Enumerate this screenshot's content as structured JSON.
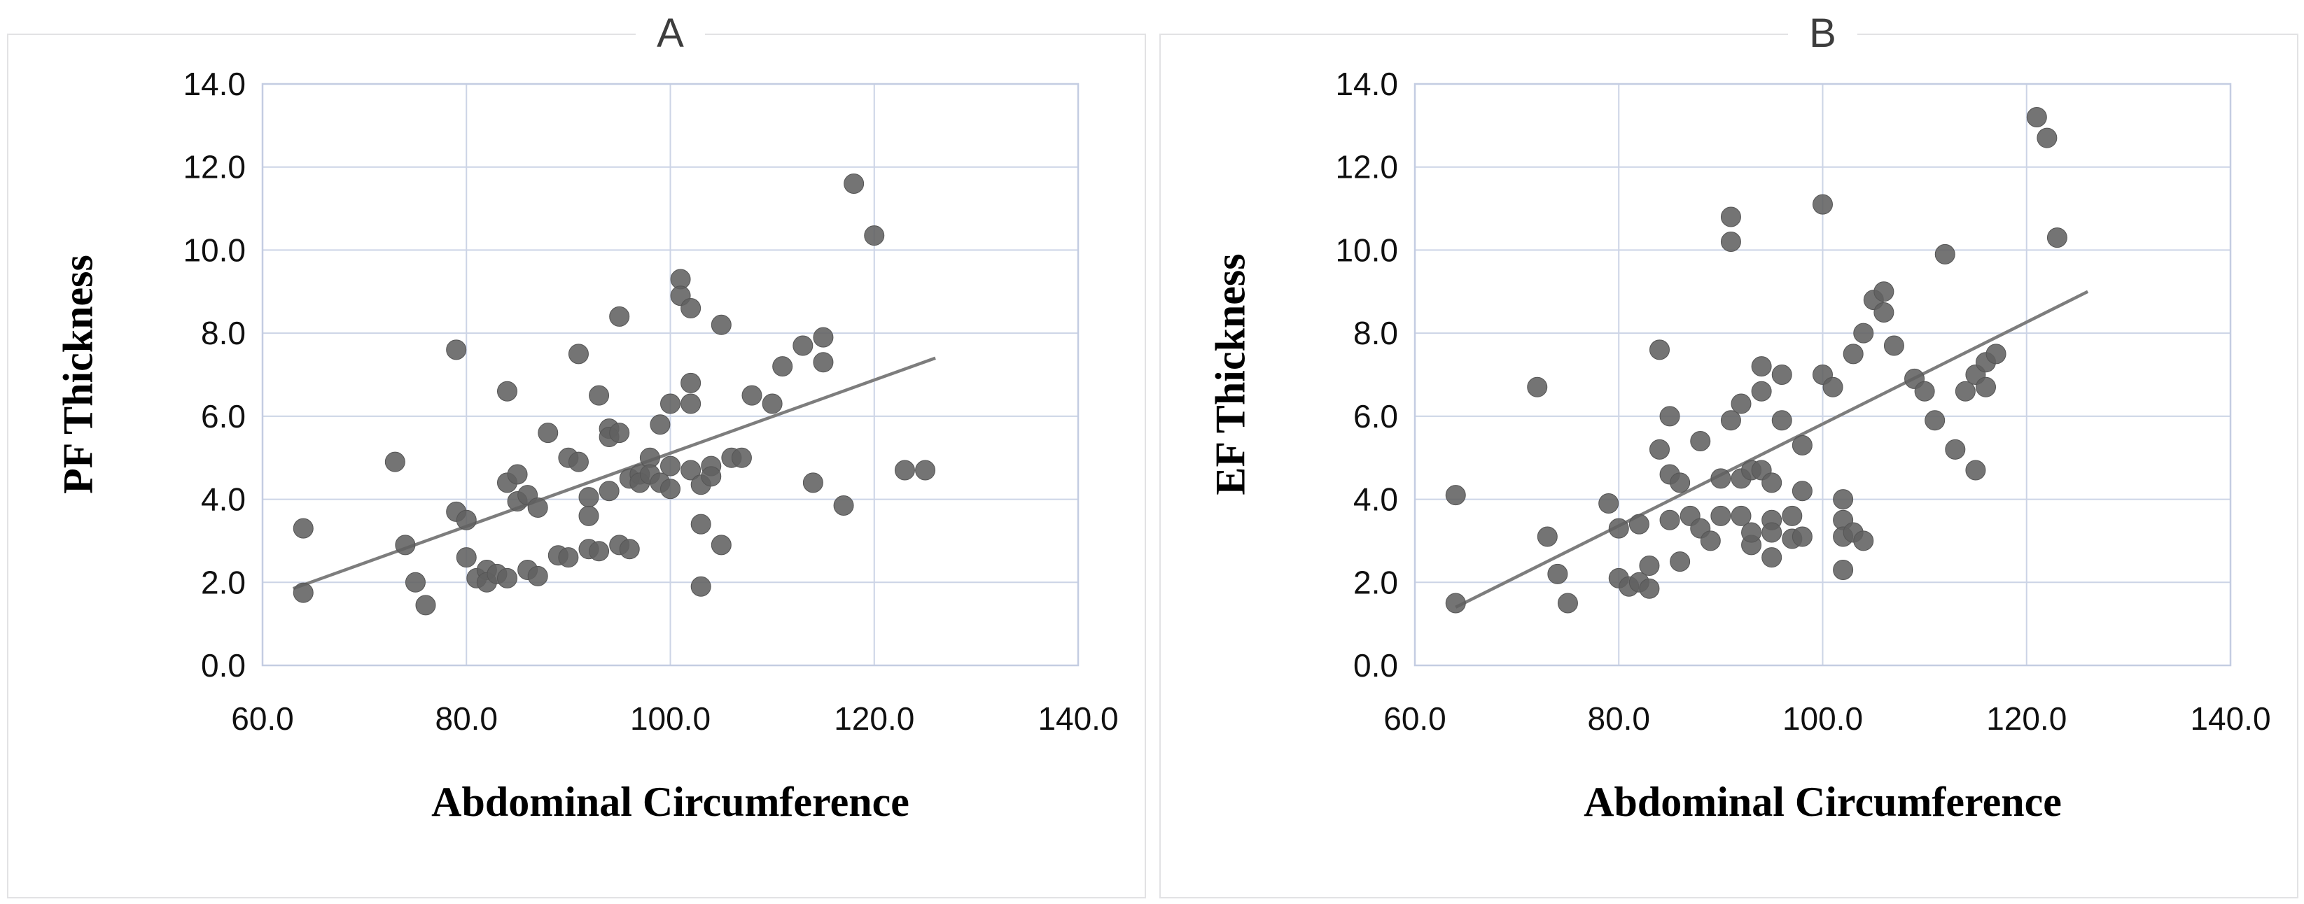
{
  "chart_data": [
    {
      "type": "scatter",
      "panel_label": "A",
      "xlabel": "Abdominal Circumference",
      "ylabel": "PF Thickness",
      "xlim": [
        60,
        140
      ],
      "ylim": [
        0,
        14
      ],
      "grid": true,
      "legend": "none",
      "x_tick_values": [
        60,
        80,
        100,
        120,
        140
      ],
      "x_ticks": [
        "60.0",
        "80.0",
        "100.0",
        "120.0",
        "140.0"
      ],
      "y_tick_values": [
        0,
        2,
        4,
        6,
        8,
        10,
        12,
        14
      ],
      "y_ticks": [
        "0.0",
        "2.0",
        "4.0",
        "6.0",
        "8.0",
        "10.0",
        "12.0",
        "14.0"
      ],
      "marker_color": "#616161",
      "gridline_color": "#ccd4e6",
      "trendline": {
        "x": [
          63,
          126
        ],
        "y": [
          1.85,
          7.4
        ],
        "color": "#7d7d7d"
      },
      "points": [
        [
          64,
          3.3
        ],
        [
          64,
          1.75
        ],
        [
          73,
          4.9
        ],
        [
          74,
          2.9
        ],
        [
          75,
          2.0
        ],
        [
          76,
          1.45
        ],
        [
          79,
          7.6
        ],
        [
          79,
          3.7
        ],
        [
          80,
          3.5
        ],
        [
          80,
          2.6
        ],
        [
          81,
          2.1
        ],
        [
          82,
          2.3
        ],
        [
          82,
          2.0
        ],
        [
          83,
          2.2
        ],
        [
          84,
          2.1
        ],
        [
          84,
          6.6
        ],
        [
          84,
          4.4
        ],
        [
          85,
          4.6
        ],
        [
          85,
          3.95
        ],
        [
          86,
          4.1
        ],
        [
          86,
          2.3
        ],
        [
          87,
          2.15
        ],
        [
          87,
          3.8
        ],
        [
          88,
          5.6
        ],
        [
          89,
          2.65
        ],
        [
          90,
          2.6
        ],
        [
          90,
          5.0
        ],
        [
          91,
          7.5
        ],
        [
          91,
          4.9
        ],
        [
          92,
          4.05
        ],
        [
          92,
          3.6
        ],
        [
          92,
          2.8
        ],
        [
          93,
          2.75
        ],
        [
          93,
          6.5
        ],
        [
          94,
          5.7
        ],
        [
          94,
          5.5
        ],
        [
          94,
          4.2
        ],
        [
          95,
          8.4
        ],
        [
          95,
          5.6
        ],
        [
          95,
          2.9
        ],
        [
          96,
          4.5
        ],
        [
          96,
          2.8
        ],
        [
          97,
          4.6
        ],
        [
          97,
          4.4
        ],
        [
          98,
          5.0
        ],
        [
          98,
          4.6
        ],
        [
          99,
          5.8
        ],
        [
          99,
          4.4
        ],
        [
          100,
          6.3
        ],
        [
          100,
          4.8
        ],
        [
          100,
          4.25
        ],
        [
          101,
          9.3
        ],
        [
          101,
          8.9
        ],
        [
          102,
          8.6
        ],
        [
          102,
          6.8
        ],
        [
          102,
          6.3
        ],
        [
          102,
          4.7
        ],
        [
          103,
          4.35
        ],
        [
          103,
          3.4
        ],
        [
          103,
          1.9
        ],
        [
          104,
          4.8
        ],
        [
          104,
          4.55
        ],
        [
          105,
          8.2
        ],
        [
          105,
          2.9
        ],
        [
          106,
          5.0
        ],
        [
          107,
          5.0
        ],
        [
          108,
          6.5
        ],
        [
          110,
          6.3
        ],
        [
          111,
          7.2
        ],
        [
          113,
          7.7
        ],
        [
          114,
          4.4
        ],
        [
          115,
          7.9
        ],
        [
          115,
          7.3
        ],
        [
          117,
          3.85
        ],
        [
          118,
          11.6
        ],
        [
          120,
          10.35
        ],
        [
          123,
          4.7
        ],
        [
          125,
          4.7
        ]
      ]
    },
    {
      "type": "scatter",
      "panel_label": "B",
      "xlabel": "Abdominal Circumference",
      "ylabel": "EF Thickness",
      "xlim": [
        60,
        140
      ],
      "ylim": [
        0,
        14
      ],
      "grid": true,
      "legend": "none",
      "x_tick_values": [
        60,
        80,
        100,
        120,
        140
      ],
      "x_ticks": [
        "60.0",
        "80.0",
        "100.0",
        "120.0",
        "140.0"
      ],
      "y_tick_values": [
        0,
        2,
        4,
        6,
        8,
        10,
        12,
        14
      ],
      "y_ticks": [
        "0.0",
        "2.0",
        "4.0",
        "6.0",
        "8.0",
        "10.0",
        "12.0",
        "14.0"
      ],
      "marker_color": "#616161",
      "gridline_color": "#ccd4e6",
      "trendline": {
        "x": [
          64,
          126
        ],
        "y": [
          1.4,
          9.0
        ],
        "color": "#7d7d7d"
      },
      "points": [
        [
          64,
          4.1
        ],
        [
          64,
          1.5
        ],
        [
          72,
          6.7
        ],
        [
          73,
          3.1
        ],
        [
          74,
          2.2
        ],
        [
          75,
          1.5
        ],
        [
          79,
          3.9
        ],
        [
          80,
          2.1
        ],
        [
          80,
          3.3
        ],
        [
          81,
          1.9
        ],
        [
          82,
          2.0
        ],
        [
          82,
          3.4
        ],
        [
          83,
          2.4
        ],
        [
          83,
          1.85
        ],
        [
          84,
          7.6
        ],
        [
          84,
          5.2
        ],
        [
          85,
          4.6
        ],
        [
          85,
          6.0
        ],
        [
          85,
          3.5
        ],
        [
          86,
          2.5
        ],
        [
          86,
          4.4
        ],
        [
          87,
          3.6
        ],
        [
          88,
          5.4
        ],
        [
          88,
          3.3
        ],
        [
          89,
          3.0
        ],
        [
          90,
          4.5
        ],
        [
          90,
          3.6
        ],
        [
          91,
          10.2
        ],
        [
          91,
          10.8
        ],
        [
          91,
          5.9
        ],
        [
          92,
          6.3
        ],
        [
          92,
          4.5
        ],
        [
          92,
          3.6
        ],
        [
          93,
          2.9
        ],
        [
          93,
          3.2
        ],
        [
          93,
          4.7
        ],
        [
          94,
          7.2
        ],
        [
          94,
          6.6
        ],
        [
          94,
          4.7
        ],
        [
          95,
          4.4
        ],
        [
          95,
          3.5
        ],
        [
          95,
          3.2
        ],
        [
          95,
          2.6
        ],
        [
          96,
          5.9
        ],
        [
          96,
          7.0
        ],
        [
          97,
          3.6
        ],
        [
          97,
          3.05
        ],
        [
          98,
          5.3
        ],
        [
          98,
          3.1
        ],
        [
          98,
          4.2
        ],
        [
          100,
          11.1
        ],
        [
          100,
          7.0
        ],
        [
          101,
          6.7
        ],
        [
          102,
          4.0
        ],
        [
          102,
          3.5
        ],
        [
          102,
          2.3
        ],
        [
          102,
          3.1
        ],
        [
          103,
          7.5
        ],
        [
          103,
          3.2
        ],
        [
          104,
          8.0
        ],
        [
          104,
          3.0
        ],
        [
          105,
          8.8
        ],
        [
          106,
          9.0
        ],
        [
          106,
          8.5
        ],
        [
          107,
          7.7
        ],
        [
          109,
          6.9
        ],
        [
          110,
          6.6
        ],
        [
          111,
          5.9
        ],
        [
          112,
          9.9
        ],
        [
          113,
          5.2
        ],
        [
          114,
          6.6
        ],
        [
          115,
          4.7
        ],
        [
          115,
          7.0
        ],
        [
          116,
          6.7
        ],
        [
          116,
          7.3
        ],
        [
          117,
          7.5
        ],
        [
          121,
          13.2
        ],
        [
          122,
          12.7
        ],
        [
          123,
          10.3
        ]
      ]
    }
  ]
}
